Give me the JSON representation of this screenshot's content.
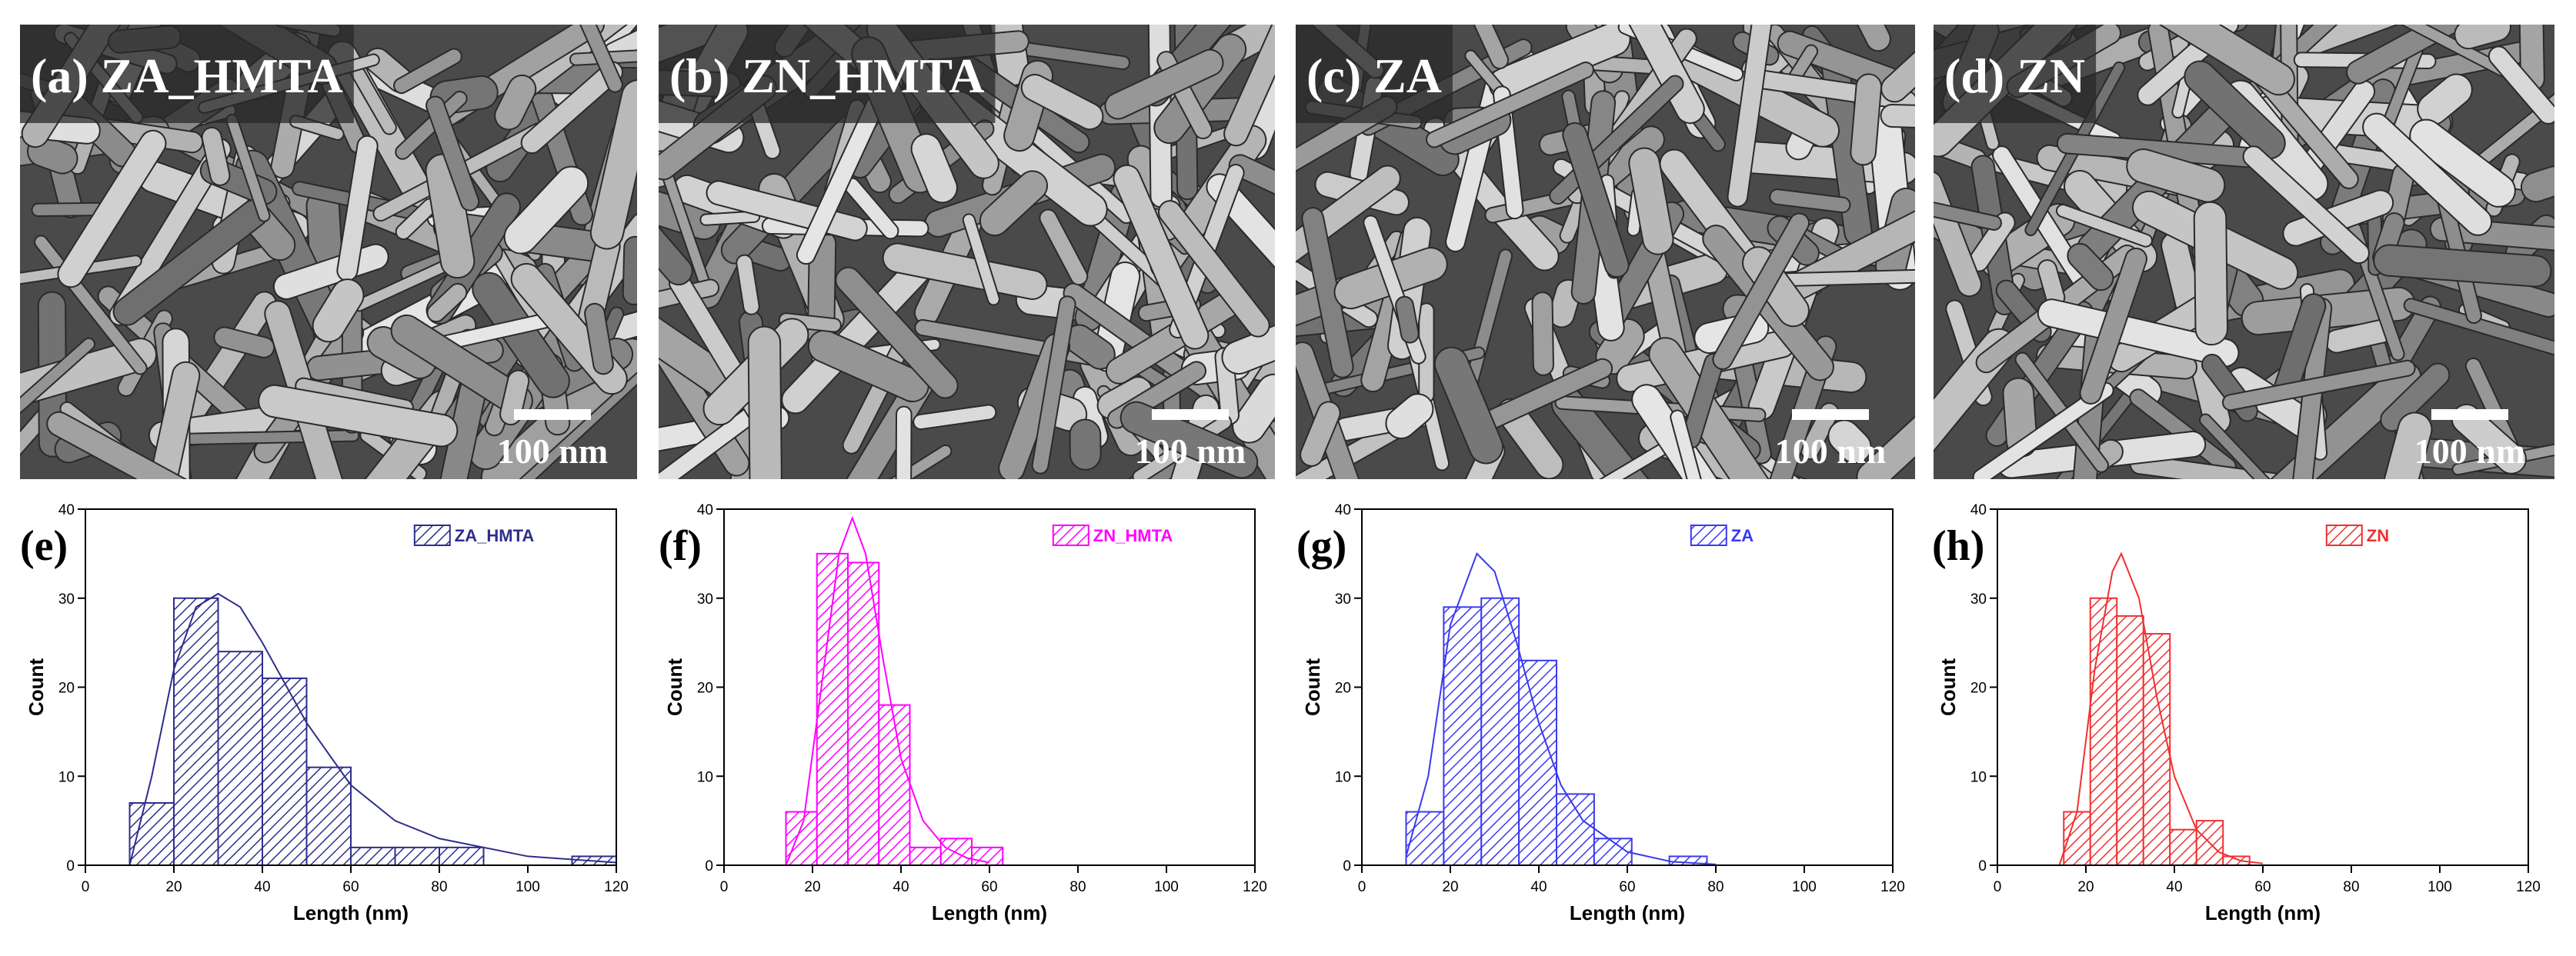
{
  "images": [
    {
      "label": "(a) ZA_HMTA",
      "scale_bar": "100 nm"
    },
    {
      "label": "(b) ZN_HMTA",
      "scale_bar": "100 nm"
    },
    {
      "label": "(c) ZA",
      "scale_bar": "100 nm"
    },
    {
      "label": "(d) ZN",
      "scale_bar": "100 nm"
    }
  ],
  "chart_data": [
    {
      "type": "histogram",
      "panel": "(e)",
      "xlabel": "Length (nm)",
      "ylabel": "Count",
      "bins": [
        10,
        20,
        30,
        40,
        50,
        60,
        70,
        80,
        90,
        100,
        110,
        120
      ],
      "series": [
        {
          "name": "ZA_HMTA",
          "color": "#2e2e8c",
          "values": [
            7,
            30,
            24,
            21,
            11,
            2,
            2,
            2,
            0,
            0,
            1
          ]
        }
      ],
      "fit": {
        "x": [
          10,
          15,
          20,
          25,
          30,
          35,
          40,
          50,
          60,
          70,
          80,
          100,
          120
        ],
        "y": [
          0,
          10,
          22,
          29,
          30.5,
          29,
          25,
          16,
          9,
          5,
          3,
          1,
          0.3
        ]
      },
      "xlim": [
        0,
        120
      ],
      "ylim": [
        0,
        40
      ],
      "xticks": [
        0,
        20,
        40,
        60,
        80,
        100,
        120
      ],
      "yticks": [
        0,
        10,
        20,
        30,
        40
      ],
      "legend": "upper right"
    },
    {
      "type": "histogram",
      "panel": "(f)",
      "xlabel": "Length (nm)",
      "ylabel": "Count",
      "bins": [
        14,
        21,
        28,
        35,
        42,
        49,
        56,
        63
      ],
      "series": [
        {
          "name": "ZN_HMTA",
          "color": "#ff00ff",
          "values": [
            6,
            35,
            34,
            18,
            2,
            3,
            2
          ]
        }
      ],
      "fit": {
        "x": [
          14,
          18,
          22,
          26,
          29,
          32,
          36,
          40,
          45,
          50,
          55,
          60
        ],
        "y": [
          0,
          5,
          20,
          35,
          39,
          35,
          23,
          12,
          5,
          2,
          0.8,
          0.3
        ]
      },
      "xlim": [
        0,
        120
      ],
      "ylim": [
        0,
        40
      ],
      "xticks": [
        0,
        20,
        40,
        60,
        80,
        100,
        120
      ],
      "yticks": [
        0,
        10,
        20,
        30,
        40
      ],
      "legend": "upper right"
    },
    {
      "type": "histogram",
      "panel": "(g)",
      "xlabel": "Length (nm)",
      "ylabel": "Count",
      "bins": [
        10,
        18.5,
        27,
        35.5,
        44,
        52.5,
        61,
        69.5,
        78
      ],
      "series": [
        {
          "name": "ZA",
          "color": "#3a3af0",
          "values": [
            6,
            29,
            30,
            23,
            8,
            3,
            0,
            1
          ]
        }
      ],
      "fit": {
        "x": [
          10,
          15,
          20,
          26,
          30,
          35,
          40,
          45,
          50,
          60,
          70,
          80
        ],
        "y": [
          1,
          10,
          27,
          35,
          33,
          25,
          16,
          9,
          5,
          1.5,
          0.4,
          0.1
        ]
      },
      "xlim": [
        0,
        120
      ],
      "ylim": [
        0,
        40
      ],
      "xticks": [
        0,
        20,
        40,
        60,
        80,
        100,
        120
      ],
      "yticks": [
        0,
        10,
        20,
        30,
        40
      ],
      "legend": "upper right"
    },
    {
      "type": "histogram",
      "panel": "(h)",
      "xlabel": "Length (nm)",
      "ylabel": "Count",
      "bins": [
        15,
        21,
        27,
        33,
        39,
        45,
        51,
        57
      ],
      "series": [
        {
          "name": "ZN",
          "color": "#f03030",
          "values": [
            6,
            30,
            28,
            26,
            4,
            5,
            1
          ]
        }
      ],
      "fit": {
        "x": [
          14,
          18,
          22,
          26,
          28,
          32,
          36,
          40,
          45,
          50,
          55,
          60
        ],
        "y": [
          0,
          6,
          22,
          33,
          35,
          30,
          19,
          10,
          4,
          1.5,
          0.5,
          0.2
        ]
      },
      "xlim": [
        0,
        120
      ],
      "ylim": [
        0,
        40
      ],
      "xticks": [
        0,
        20,
        40,
        60,
        80,
        100,
        120
      ],
      "yticks": [
        0,
        10,
        20,
        30,
        40
      ],
      "legend": "upper right"
    }
  ]
}
